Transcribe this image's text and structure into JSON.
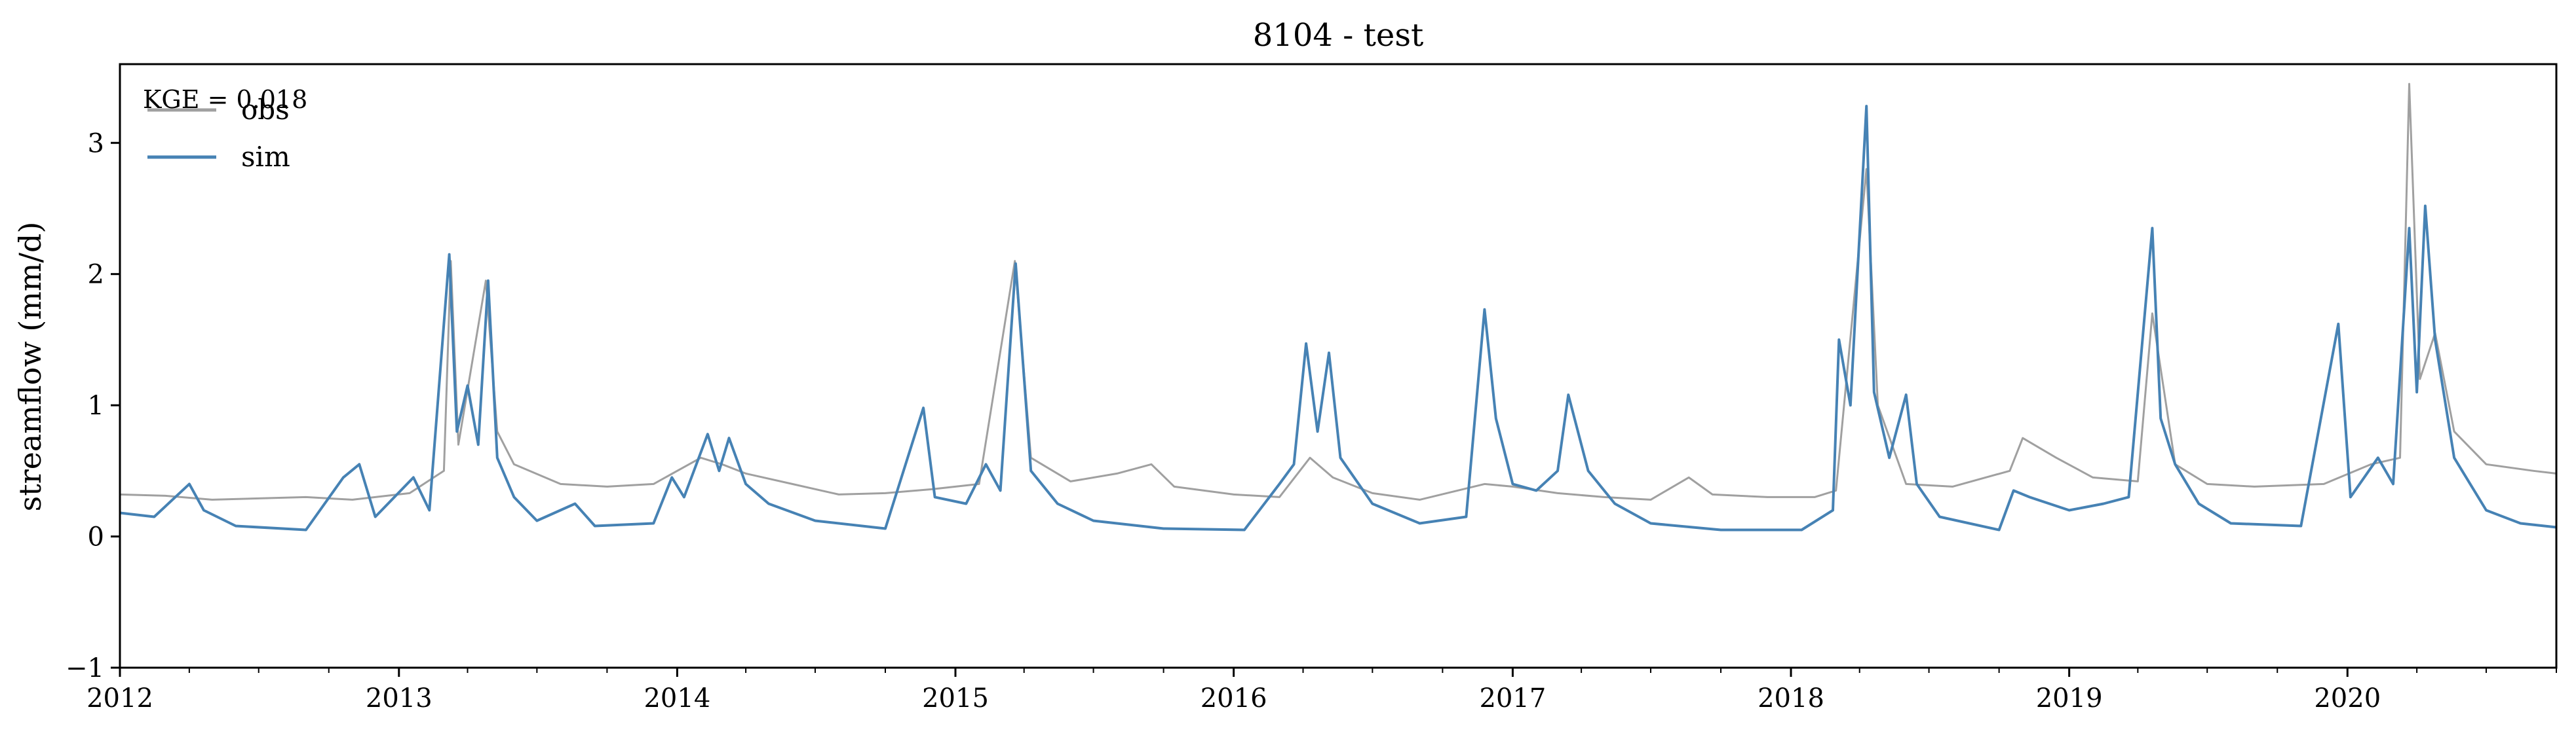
{
  "chart_data": {
    "type": "line",
    "title": "8104 - test",
    "xlabel": "",
    "ylabel": "streamflow (mm/d)",
    "xlim": [
      "2012-01-01",
      "2020-10-01"
    ],
    "ylim": [
      -1,
      3.6
    ],
    "x_ticks": [
      "2012",
      "2013",
      "2014",
      "2015",
      "2016",
      "2017",
      "2018",
      "2019",
      "2020"
    ],
    "y_ticks": [
      -1,
      0,
      1,
      2,
      3
    ],
    "y_tick_labels": [
      "−1",
      "0",
      "1",
      "2",
      "3"
    ],
    "grid": false,
    "legend_position": "top-left",
    "annotation": "KGE = 0.018",
    "series": [
      {
        "name": "obs",
        "color": "#a0a0a0",
        "points": [
          [
            "2012-01-01",
            0.32
          ],
          [
            "2012-03-01",
            0.31
          ],
          [
            "2012-05-01",
            0.28
          ],
          [
            "2012-07-01",
            0.29
          ],
          [
            "2012-09-01",
            0.3
          ],
          [
            "2012-11-01",
            0.28
          ],
          [
            "2013-01-15",
            0.33
          ],
          [
            "2013-03-01",
            0.5
          ],
          [
            "2013-03-10",
            2.1
          ],
          [
            "2013-03-20",
            0.7
          ],
          [
            "2013-04-25",
            1.95
          ],
          [
            "2013-05-10",
            0.8
          ],
          [
            "2013-06-01",
            0.55
          ],
          [
            "2013-08-01",
            0.4
          ],
          [
            "2013-10-01",
            0.38
          ],
          [
            "2013-12-01",
            0.4
          ],
          [
            "2014-02-01",
            0.6
          ],
          [
            "2014-03-01",
            0.55
          ],
          [
            "2014-04-01",
            0.48
          ],
          [
            "2014-06-01",
            0.4
          ],
          [
            "2014-08-01",
            0.32
          ],
          [
            "2014-10-01",
            0.33
          ],
          [
            "2014-12-01",
            0.36
          ],
          [
            "2015-02-01",
            0.4
          ],
          [
            "2015-03-20",
            2.1
          ],
          [
            "2015-04-10",
            0.6
          ],
          [
            "2015-06-01",
            0.42
          ],
          [
            "2015-08-01",
            0.48
          ],
          [
            "2015-09-15",
            0.55
          ],
          [
            "2015-10-15",
            0.38
          ],
          [
            "2016-01-01",
            0.32
          ],
          [
            "2016-03-01",
            0.3
          ],
          [
            "2016-04-10",
            0.6
          ],
          [
            "2016-05-10",
            0.45
          ],
          [
            "2016-07-01",
            0.33
          ],
          [
            "2016-09-01",
            0.28
          ],
          [
            "2016-11-25",
            0.4
          ],
          [
            "2017-01-01",
            0.38
          ],
          [
            "2017-03-01",
            0.33
          ],
          [
            "2017-05-01",
            0.3
          ],
          [
            "2017-07-01",
            0.28
          ],
          [
            "2017-08-20",
            0.45
          ],
          [
            "2017-09-20",
            0.32
          ],
          [
            "2017-12-01",
            0.3
          ],
          [
            "2018-02-01",
            0.3
          ],
          [
            "2018-03-01",
            0.35
          ],
          [
            "2018-04-10",
            2.8
          ],
          [
            "2018-04-25",
            1.0
          ],
          [
            "2018-06-01",
            0.4
          ],
          [
            "2018-08-01",
            0.38
          ],
          [
            "2018-10-15",
            0.5
          ],
          [
            "2018-11-01",
            0.75
          ],
          [
            "2018-12-15",
            0.6
          ],
          [
            "2019-02-01",
            0.45
          ],
          [
            "2019-04-01",
            0.42
          ],
          [
            "2019-04-20",
            1.7
          ],
          [
            "2019-05-20",
            0.55
          ],
          [
            "2019-07-01",
            0.4
          ],
          [
            "2019-09-01",
            0.38
          ],
          [
            "2019-12-01",
            0.4
          ],
          [
            "2020-02-01",
            0.55
          ],
          [
            "2020-03-10",
            0.6
          ],
          [
            "2020-03-22",
            3.45
          ],
          [
            "2020-04-05",
            1.2
          ],
          [
            "2020-04-25",
            1.55
          ],
          [
            "2020-05-20",
            0.8
          ],
          [
            "2020-07-01",
            0.55
          ],
          [
            "2020-09-01",
            0.5
          ],
          [
            "2020-10-01",
            0.48
          ]
        ]
      },
      {
        "name": "sim",
        "color": "#4682b4",
        "points": [
          [
            "2012-01-01",
            0.18
          ],
          [
            "2012-02-15",
            0.15
          ],
          [
            "2012-04-01",
            0.4
          ],
          [
            "2012-04-20",
            0.2
          ],
          [
            "2012-06-01",
            0.08
          ],
          [
            "2012-09-01",
            0.05
          ],
          [
            "2012-10-20",
            0.45
          ],
          [
            "2012-11-10",
            0.55
          ],
          [
            "2012-12-01",
            0.15
          ],
          [
            "2013-01-20",
            0.45
          ],
          [
            "2013-02-10",
            0.2
          ],
          [
            "2013-03-08",
            2.15
          ],
          [
            "2013-03-18",
            0.8
          ],
          [
            "2013-04-01",
            1.15
          ],
          [
            "2013-04-15",
            0.7
          ],
          [
            "2013-04-28",
            1.95
          ],
          [
            "2013-05-10",
            0.6
          ],
          [
            "2013-06-01",
            0.3
          ],
          [
            "2013-07-01",
            0.12
          ],
          [
            "2013-08-20",
            0.25
          ],
          [
            "2013-09-15",
            0.08
          ],
          [
            "2013-12-01",
            0.1
          ],
          [
            "2013-12-25",
            0.45
          ],
          [
            "2014-01-10",
            0.3
          ],
          [
            "2014-02-10",
            0.78
          ],
          [
            "2014-02-25",
            0.5
          ],
          [
            "2014-03-10",
            0.75
          ],
          [
            "2014-04-01",
            0.4
          ],
          [
            "2014-05-01",
            0.25
          ],
          [
            "2014-07-01",
            0.12
          ],
          [
            "2014-10-01",
            0.06
          ],
          [
            "2014-11-20",
            0.98
          ],
          [
            "2014-12-05",
            0.3
          ],
          [
            "2015-01-15",
            0.25
          ],
          [
            "2015-02-10",
            0.55
          ],
          [
            "2015-03-01",
            0.35
          ],
          [
            "2015-03-21",
            2.08
          ],
          [
            "2015-04-10",
            0.5
          ],
          [
            "2015-05-15",
            0.25
          ],
          [
            "2015-07-01",
            0.12
          ],
          [
            "2015-10-01",
            0.06
          ],
          [
            "2016-01-15",
            0.05
          ],
          [
            "2016-03-01",
            0.4
          ],
          [
            "2016-03-20",
            0.55
          ],
          [
            "2016-04-05",
            1.47
          ],
          [
            "2016-04-20",
            0.8
          ],
          [
            "2016-05-05",
            1.4
          ],
          [
            "2016-05-20",
            0.6
          ],
          [
            "2016-07-01",
            0.25
          ],
          [
            "2016-09-01",
            0.1
          ],
          [
            "2016-11-01",
            0.15
          ],
          [
            "2016-11-25",
            1.73
          ],
          [
            "2016-12-10",
            0.9
          ],
          [
            "2017-01-01",
            0.4
          ],
          [
            "2017-02-01",
            0.35
          ],
          [
            "2017-03-01",
            0.5
          ],
          [
            "2017-03-15",
            1.08
          ],
          [
            "2017-04-10",
            0.5
          ],
          [
            "2017-05-15",
            0.25
          ],
          [
            "2017-07-01",
            0.1
          ],
          [
            "2017-10-01",
            0.05
          ],
          [
            "2018-01-15",
            0.05
          ],
          [
            "2018-02-25",
            0.2
          ],
          [
            "2018-03-05",
            1.5
          ],
          [
            "2018-03-20",
            1.0
          ],
          [
            "2018-04-10",
            3.28
          ],
          [
            "2018-04-20",
            1.1
          ],
          [
            "2018-05-10",
            0.6
          ],
          [
            "2018-06-01",
            1.08
          ],
          [
            "2018-06-15",
            0.4
          ],
          [
            "2018-07-15",
            0.15
          ],
          [
            "2018-10-01",
            0.05
          ],
          [
            "2018-10-20",
            0.35
          ],
          [
            "2018-11-10",
            0.3
          ],
          [
            "2019-01-01",
            0.2
          ],
          [
            "2019-02-15",
            0.25
          ],
          [
            "2019-03-20",
            0.3
          ],
          [
            "2019-04-20",
            2.35
          ],
          [
            "2019-05-01",
            0.9
          ],
          [
            "2019-05-20",
            0.55
          ],
          [
            "2019-06-20",
            0.25
          ],
          [
            "2019-08-01",
            0.1
          ],
          [
            "2019-11-01",
            0.08
          ],
          [
            "2019-12-20",
            1.62
          ],
          [
            "2020-01-05",
            0.3
          ],
          [
            "2020-02-10",
            0.6
          ],
          [
            "2020-03-01",
            0.4
          ],
          [
            "2020-03-22",
            2.35
          ],
          [
            "2020-04-01",
            1.1
          ],
          [
            "2020-04-12",
            2.52
          ],
          [
            "2020-04-25",
            1.5
          ],
          [
            "2020-05-20",
            0.6
          ],
          [
            "2020-07-01",
            0.2
          ],
          [
            "2020-08-15",
            0.1
          ],
          [
            "2020-10-01",
            0.07
          ]
        ]
      }
    ]
  }
}
